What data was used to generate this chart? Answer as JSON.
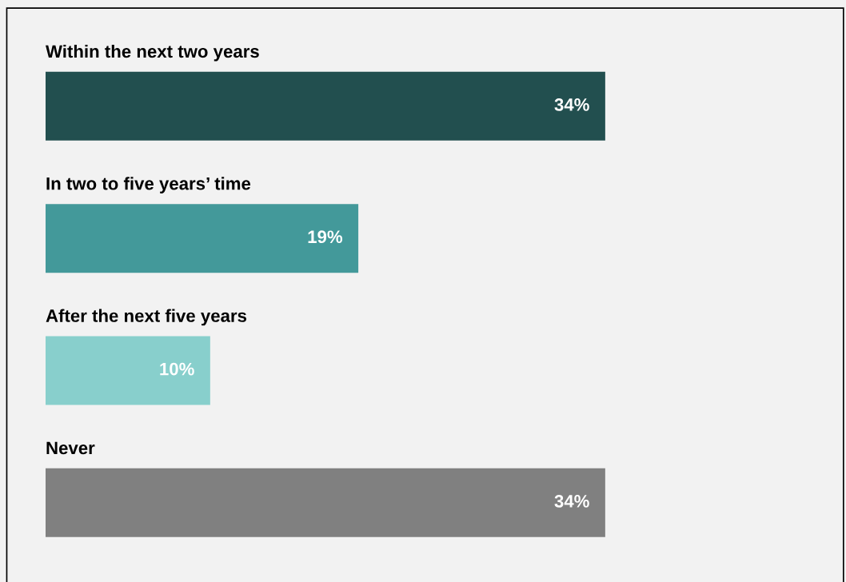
{
  "chart_data": {
    "type": "bar",
    "orientation": "horizontal",
    "categories": [
      "Within the next two years",
      "In two to five years’ time",
      "After the next five years",
      "Never"
    ],
    "values": [
      34,
      19,
      10,
      34
    ],
    "colors": [
      "#224f4f",
      "#43999a",
      "#88cfcc",
      "#808080"
    ],
    "data_labels": true,
    "value_labels": [
      "34%",
      "19%",
      "10%",
      "34%"
    ]
  }
}
